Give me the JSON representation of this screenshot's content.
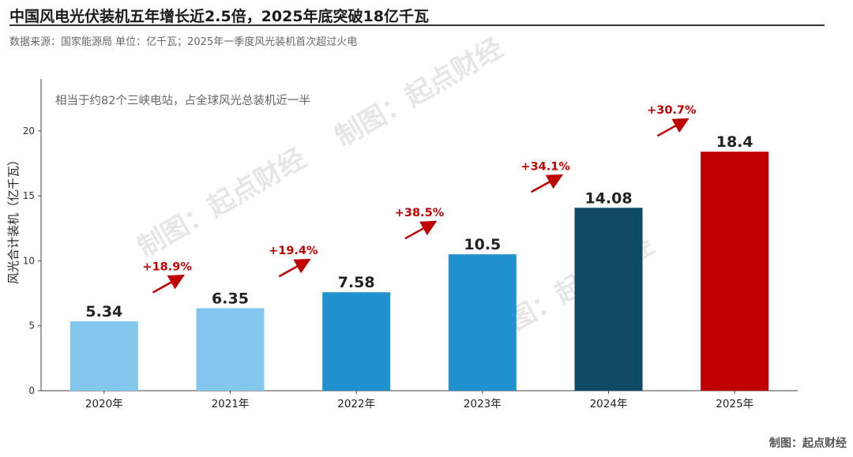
{
  "header": {
    "title": "中国风电光伏装机五年增长近2.5倍，2025年底突破18亿千瓦",
    "subtitle": "数据来源：国家能源局  单位：亿千瓦；2025年一季度风光装机首次超过火电"
  },
  "footer": {
    "credit": "制图：起点财经"
  },
  "watermark": {
    "text": "制图：起点财经"
  },
  "chart_data": {
    "type": "bar",
    "categories": [
      "2020年",
      "2021年",
      "2022年",
      "2023年",
      "2024年",
      "2025年"
    ],
    "values": [
      5.34,
      6.35,
      7.58,
      10.5,
      14.08,
      18.4
    ],
    "value_labels": [
      "5.34",
      "6.35",
      "7.58",
      "10.5",
      "14.08",
      "18.4"
    ],
    "growth_labels": [
      "+18.9%",
      "+19.4%",
      "+38.5%",
      "+34.1%",
      "+30.7%"
    ],
    "bar_colors": [
      "#82c8ee",
      "#82c8ee",
      "#2092cf",
      "#2092cf",
      "#0e4b63",
      "#c00000"
    ],
    "growth_color": "#c00000",
    "annotation": "相当于约82个三峡电站，占全球风光总装机近一半",
    "ylabel": "风光合计装机（亿千瓦）",
    "xlabel": "",
    "ylim": [
      0,
      24
    ],
    "yticks": [
      0,
      5,
      10,
      15,
      20
    ],
    "grid": false
  }
}
